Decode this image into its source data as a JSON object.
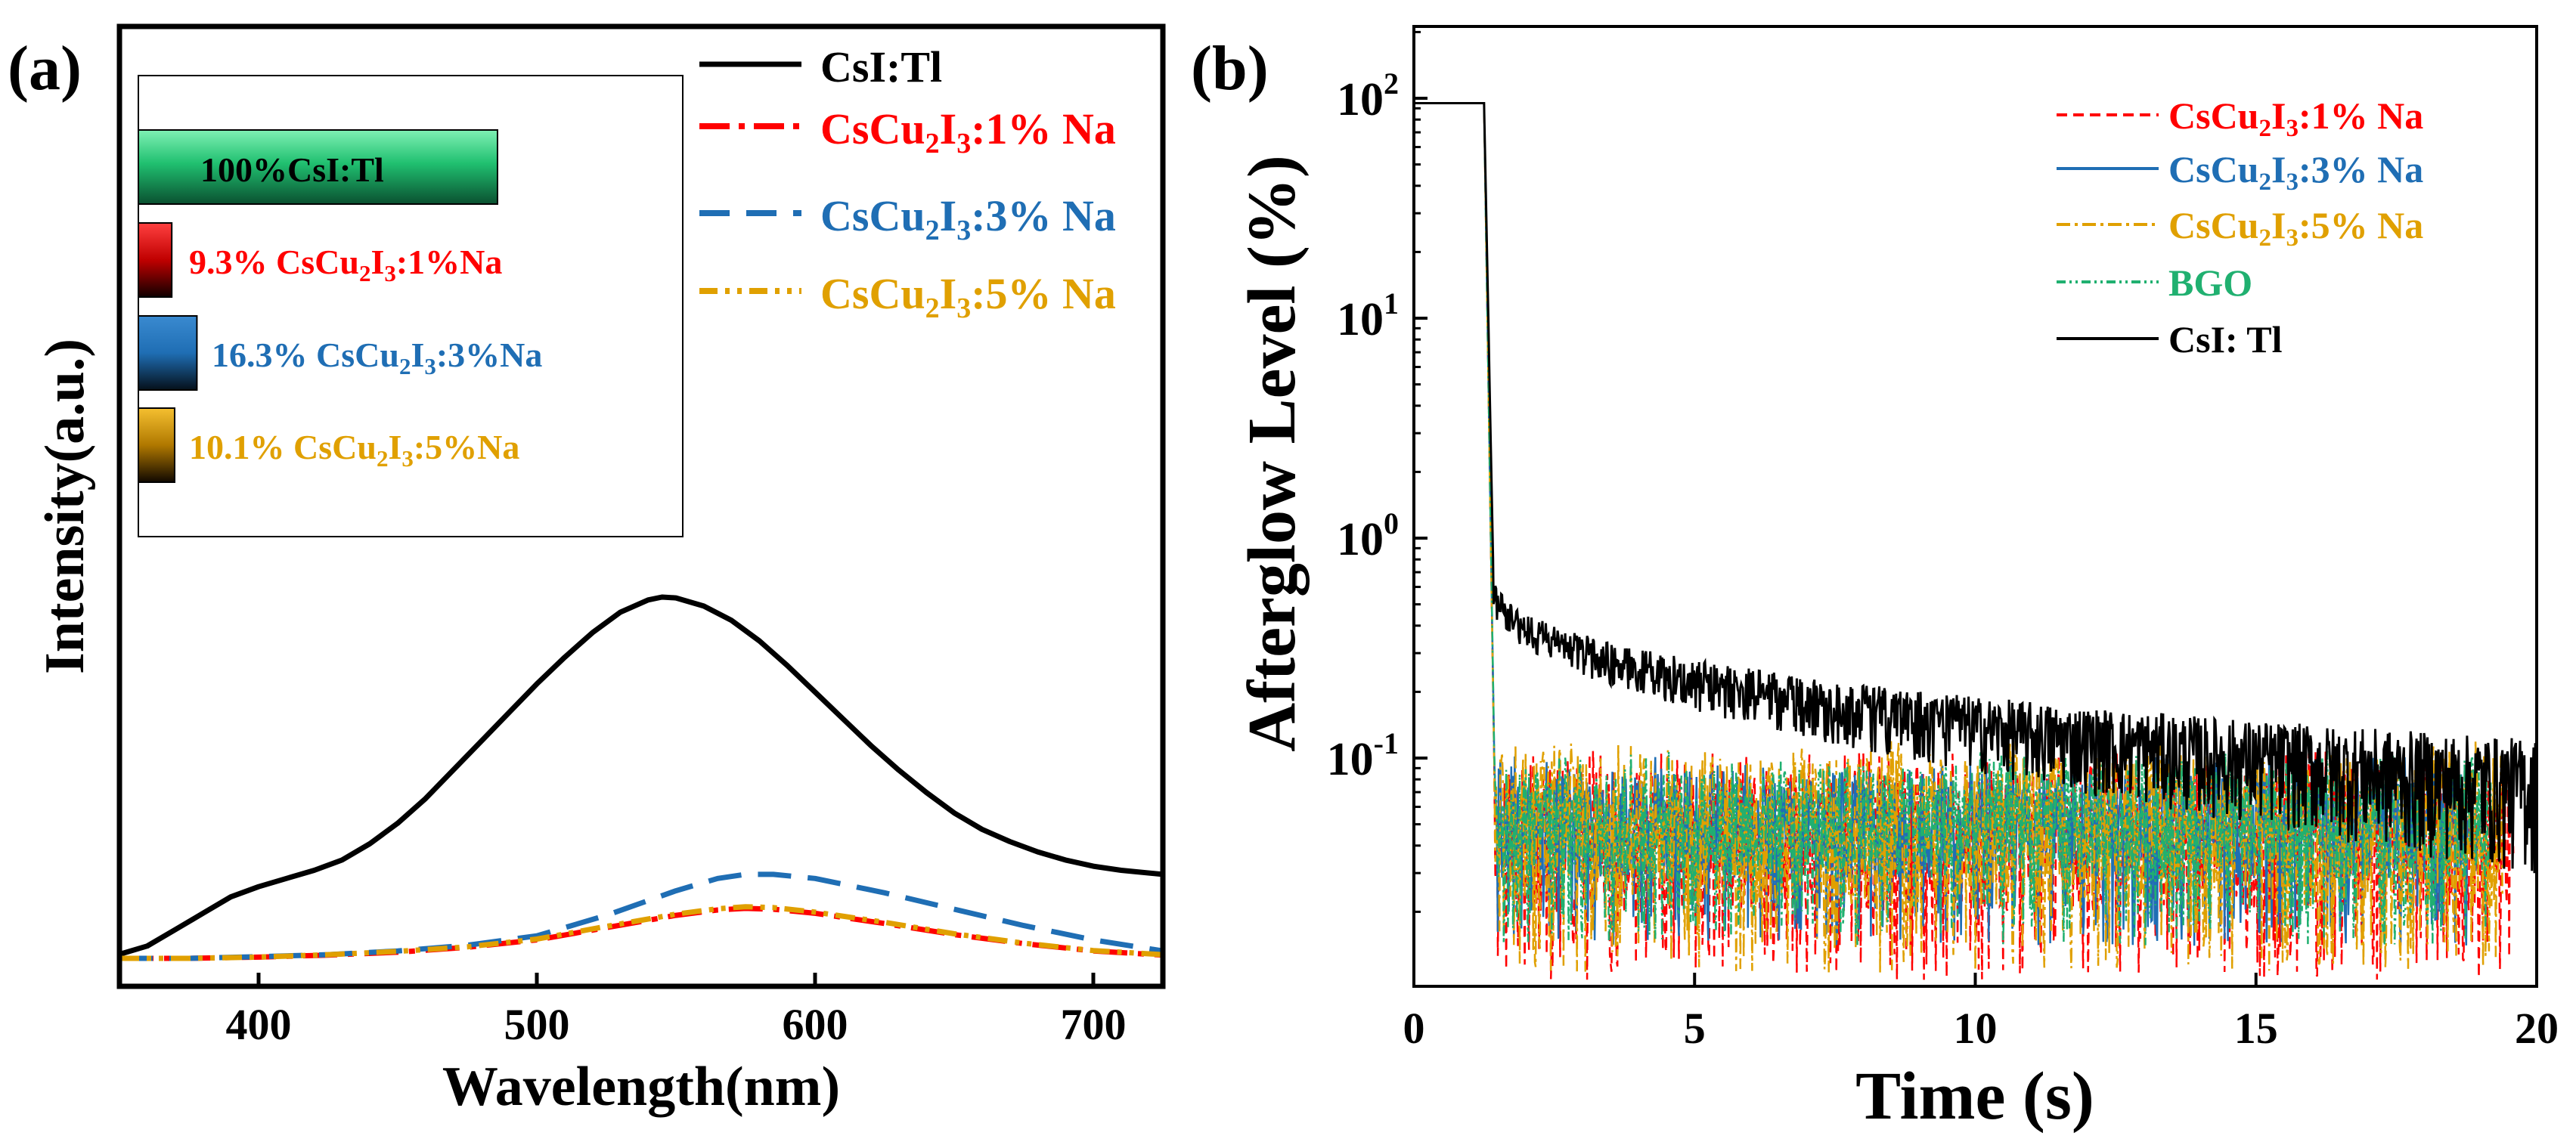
{
  "chart_data": [
    {
      "panel_label": "(a)",
      "type": "line",
      "title": "",
      "xlabel": "Wavelength(nm)",
      "ylabel": "Intensity(a.u.)",
      "xlim": [
        350,
        725
      ],
      "ylim": [
        0,
        1.0
      ],
      "xticks": [
        400,
        500,
        600,
        700
      ],
      "grid": false,
      "legend": {
        "placement": "top-right"
      },
      "series": [
        {
          "name": "CsI:Tl",
          "legend_main": "CsI:Tl",
          "legend_sub1": "",
          "legend_mid": "",
          "legend_sub2": "",
          "legend_tail": "",
          "color": "#000000",
          "dash": "solid",
          "x": [
            350,
            360,
            370,
            380,
            390,
            400,
            410,
            420,
            430,
            440,
            450,
            460,
            470,
            480,
            490,
            500,
            510,
            520,
            530,
            540,
            545,
            550,
            560,
            570,
            580,
            590,
            600,
            610,
            620,
            630,
            640,
            650,
            660,
            670,
            680,
            690,
            700,
            710,
            725
          ],
          "y": [
            0.01,
            0.03,
            0.07,
            0.11,
            0.15,
            0.175,
            0.195,
            0.215,
            0.24,
            0.28,
            0.33,
            0.39,
            0.46,
            0.53,
            0.6,
            0.67,
            0.735,
            0.795,
            0.845,
            0.875,
            0.882,
            0.88,
            0.86,
            0.825,
            0.775,
            0.715,
            0.65,
            0.585,
            0.52,
            0.46,
            0.405,
            0.355,
            0.315,
            0.285,
            0.26,
            0.24,
            0.225,
            0.215,
            0.205
          ]
        },
        {
          "name": "CsCu2I3:1% Na",
          "legend_main": "CsCu",
          "legend_sub1": "2",
          "legend_mid": "I",
          "legend_sub2": "3",
          "legend_tail": ":1% Na",
          "color": "#ff0000",
          "dash": "45,14,8,14",
          "x": [
            350,
            375,
            400,
            425,
            450,
            475,
            500,
            525,
            550,
            565,
            575,
            585,
            600,
            625,
            650,
            675,
            700,
            725
          ],
          "y": [
            0.0,
            0.0,
            0.003,
            0.008,
            0.015,
            0.027,
            0.045,
            0.075,
            0.105,
            0.118,
            0.122,
            0.12,
            0.11,
            0.085,
            0.058,
            0.036,
            0.018,
            0.008
          ]
        },
        {
          "name": "CsCu2I3:3% Na",
          "legend_main": "CsCu",
          "legend_sub1": "2",
          "legend_mid": "I",
          "legend_sub2": "3",
          "legend_tail": ":3% Na",
          "color": "#1f6eb4",
          "dash": "44,22",
          "x": [
            350,
            375,
            400,
            425,
            450,
            475,
            500,
            525,
            550,
            565,
            575,
            585,
            600,
            625,
            650,
            675,
            700,
            725
          ],
          "y": [
            0.0,
            0.0,
            0.004,
            0.009,
            0.018,
            0.032,
            0.055,
            0.105,
            0.165,
            0.195,
            0.205,
            0.205,
            0.195,
            0.16,
            0.12,
            0.08,
            0.045,
            0.018
          ]
        },
        {
          "name": "CsCu2I3:5% Na",
          "legend_main": "CsCu",
          "legend_sub1": "2",
          "legend_mid": "I",
          "legend_sub2": "3",
          "legend_tail": ":5% Na",
          "color": "#e0a000",
          "dash": "26,10,6,10,6,10",
          "x": [
            350,
            375,
            400,
            425,
            450,
            475,
            500,
            525,
            550,
            565,
            575,
            585,
            600,
            625,
            650,
            675,
            700,
            725
          ],
          "y": [
            0.0,
            0.0,
            0.003,
            0.009,
            0.017,
            0.028,
            0.047,
            0.078,
            0.108,
            0.121,
            0.126,
            0.124,
            0.113,
            0.088,
            0.06,
            0.037,
            0.019,
            0.009
          ]
        }
      ],
      "inset": {
        "type": "bar",
        "orientation": "horizontal",
        "bars": [
          {
            "label_prefix": "100%CsI:Tl",
            "label_main": "",
            "label_sub1": "",
            "label_mid": "",
            "label_sub2": "",
            "label_tail": "",
            "value": 100,
            "color": "#22c070",
            "text_inside": true
          },
          {
            "label_prefix": "9.3% ",
            "label_main": "CsCu",
            "label_sub1": "2",
            "label_mid": "I",
            "label_sub2": "3",
            "label_tail": ":1%Na",
            "value": 9.3,
            "color": "#ff1010",
            "text_inside": false
          },
          {
            "label_prefix": "16.3% ",
            "label_main": "CsCu",
            "label_sub1": "2",
            "label_mid": "I",
            "label_sub2": "3",
            "label_tail": ":3%Na",
            "value": 16.3,
            "color": "#1f6eb4",
            "text_inside": false
          },
          {
            "label_prefix": "10.1% ",
            "label_main": "CsCu",
            "label_sub1": "2",
            "label_mid": "I",
            "label_sub2": "3",
            "label_tail": ":5%Na",
            "value": 10.1,
            "color": "#e0a000",
            "text_inside": false
          }
        ]
      }
    },
    {
      "panel_label": "(b)",
      "type": "line",
      "title": "",
      "xlabel": "Time (s)",
      "ylabel": "Afterglow Level (%)",
      "xlim": [
        0,
        20
      ],
      "ylim": [
        0.013,
        200
      ],
      "yscale": "log",
      "xticks": [
        0,
        5,
        10,
        15,
        20
      ],
      "yticks": [
        {
          "value": 100,
          "base": "10",
          "exp": "2"
        },
        {
          "value": 10,
          "base": "10",
          "exp": "1"
        },
        {
          "value": 1,
          "base": "10",
          "exp": "0"
        },
        {
          "value": 0.1,
          "base": "10",
          "exp": "-1"
        }
      ],
      "grid": false,
      "legend": {
        "placement": "top-right"
      },
      "series": [
        {
          "name": "CsCu2I3:1% Na",
          "legend_main": "CsCu",
          "legend_sub1": "2",
          "legend_mid": "I",
          "legend_sub2": "3",
          "legend_tail": ":1% Na",
          "color": "#ff0000",
          "dash": "14,8",
          "pulse_level": 95,
          "pulse_end": 1.25,
          "drop_end": 1.45,
          "tail_level": 0.045,
          "tail_min": 0.014,
          "tail_max": 0.09,
          "tail_end": 19.6,
          "kind": "noise"
        },
        {
          "name": "CsCu2I3:3% Na",
          "legend_main": "CsCu",
          "legend_sub1": "2",
          "legend_mid": "I",
          "legend_sub2": "3",
          "legend_tail": ":3% Na",
          "color": "#1f6eb4",
          "dash": "solid",
          "pulse_level": 95,
          "pulse_end": 1.25,
          "drop_end": 1.45,
          "tail_level": 0.05,
          "tail_min": 0.02,
          "tail_max": 0.085,
          "tail_end": 19.0,
          "kind": "noise"
        },
        {
          "name": "CsCu2I3:5% Na",
          "legend_main": "CsCu",
          "legend_sub1": "2",
          "legend_mid": "I",
          "legend_sub2": "3",
          "legend_tail": ":5% Na",
          "color": "#e0a000",
          "dash": "18,6,4,6",
          "pulse_level": 95,
          "pulse_end": 1.25,
          "drop_end": 1.45,
          "tail_level": 0.045,
          "tail_min": 0.015,
          "tail_max": 0.1,
          "tail_end": 19.4,
          "kind": "noise"
        },
        {
          "name": "BGO",
          "legend_main": "BGO",
          "legend_sub1": "",
          "legend_mid": "",
          "legend_sub2": "",
          "legend_tail": "",
          "color": "#20b070",
          "dash": "12,5,3,5,3,5",
          "pulse_level": 95,
          "pulse_end": 1.25,
          "drop_end": 1.45,
          "tail_level": 0.05,
          "tail_min": 0.02,
          "tail_max": 0.09,
          "tail_end": 19.2,
          "kind": "noise"
        },
        {
          "name": "CsI: Tl",
          "legend_main": "CsI: Tl",
          "legend_sub1": "",
          "legend_mid": "",
          "legend_sub2": "",
          "legend_tail": "",
          "color": "#000000",
          "dash": "solid",
          "pulse_level": 95,
          "pulse_end": 1.25,
          "drop_end": 1.42,
          "tail_level": 0.6,
          "tail_end_level": 0.075,
          "tail_end": 20,
          "kind": "decay"
        }
      ]
    }
  ]
}
